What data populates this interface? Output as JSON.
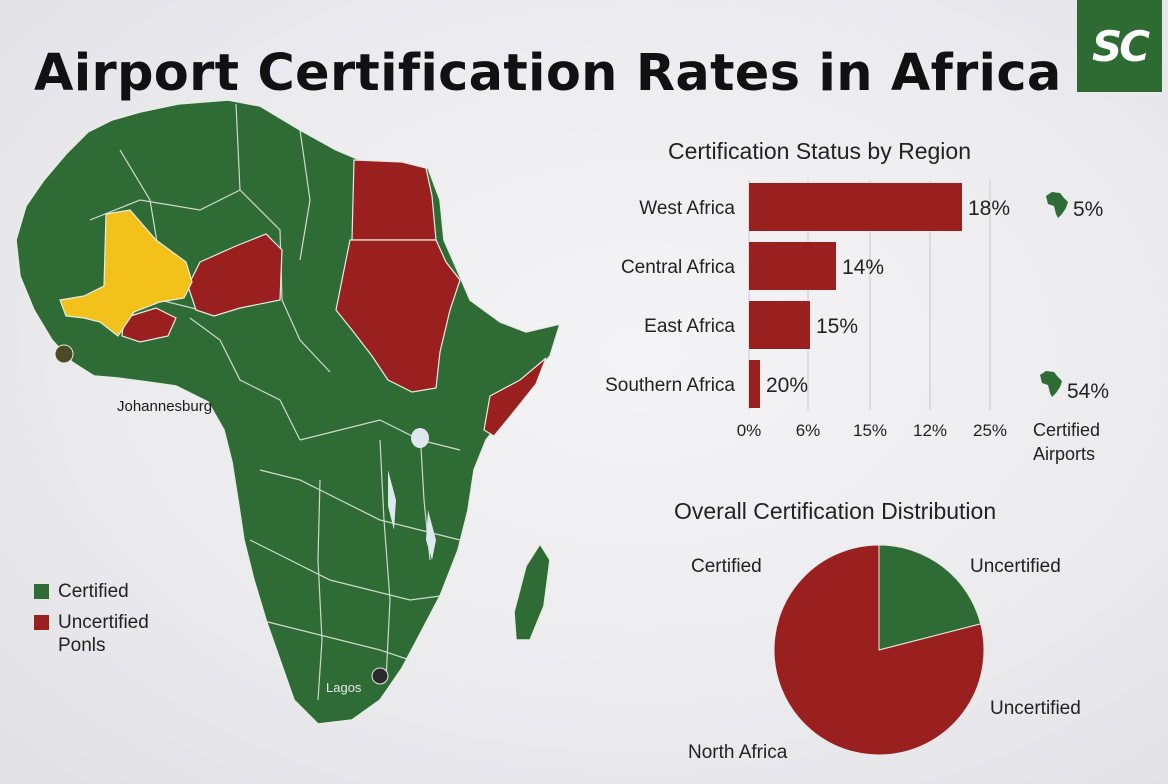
{
  "header": {
    "title": "Airport Certification Rates in Africa",
    "logo_text": "SC"
  },
  "colors": {
    "certified": "#2f6b35",
    "uncertified": "#9a1f1f",
    "highlight": "#f2c21a",
    "background": "#ececef"
  },
  "map": {
    "labels": [
      "Johannesburg",
      "Lagos"
    ],
    "legend": [
      {
        "label": "Certified",
        "color": "#2f6b35"
      },
      {
        "label": "Uncertified\nPonls",
        "color": "#9a1f1f"
      }
    ]
  },
  "chart_data": [
    {
      "type": "bar",
      "orientation": "horizontal",
      "title": "Certification Status by Region",
      "categories": [
        "West Africa",
        "Central Africa",
        "East Africa",
        "Southern Africa"
      ],
      "values": [
        18,
        14,
        15,
        20
      ],
      "value_labels": [
        "18%",
        "14%",
        "15%",
        "20%"
      ],
      "x_tick_labels": [
        "0%",
        "6%",
        "15%",
        "12%",
        "25%"
      ],
      "grid": true,
      "side_annotations": [
        {
          "value": "5%",
          "icon": "africa-icon"
        },
        {
          "value": "54%",
          "icon": "africa-icon"
        }
      ],
      "side_caption": "Certified Airports"
    },
    {
      "type": "pie",
      "title": "Overall Certification Distribution",
      "slices": [
        {
          "label": "Certified",
          "value": 21,
          "color": "#2f6b35"
        },
        {
          "label": "Uncertified",
          "value": 79,
          "color": "#9a1f1f"
        }
      ],
      "labels": [
        "Certified",
        "Uncertified",
        "Uncertified",
        "North Africa"
      ]
    }
  ]
}
